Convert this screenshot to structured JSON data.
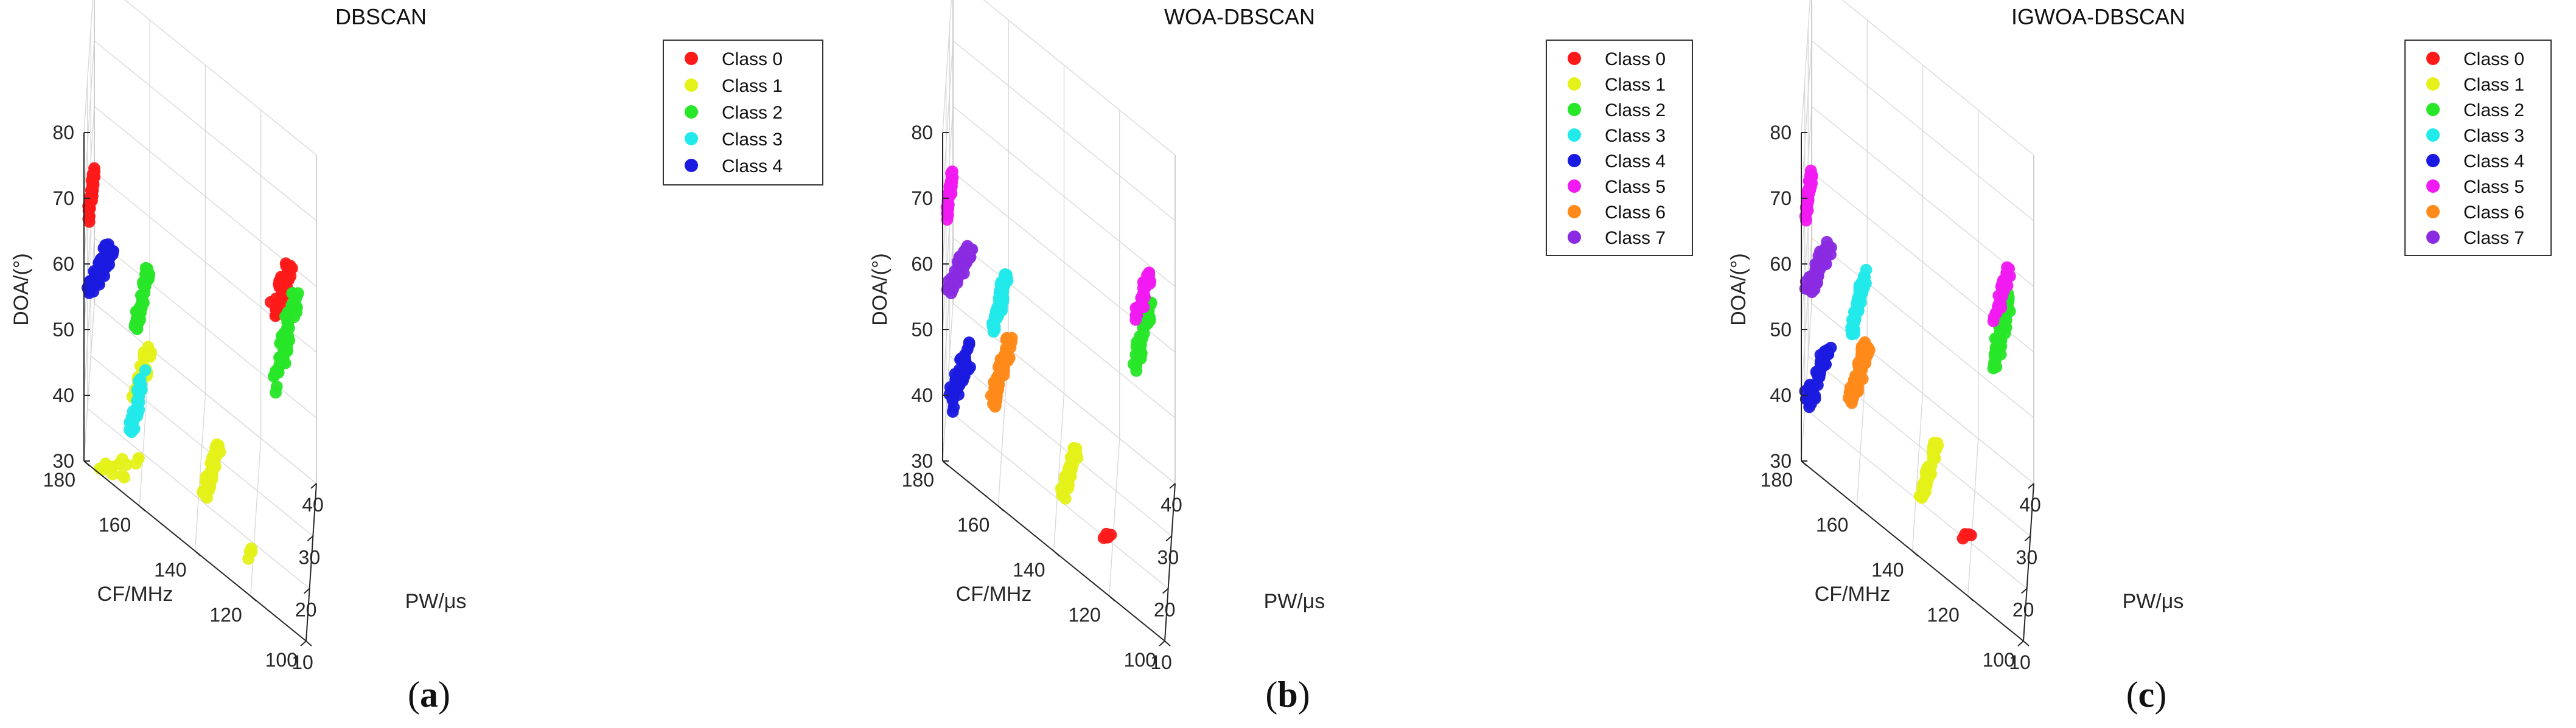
{
  "figure": {
    "captions": [
      "(a)",
      "(b)",
      "(c)"
    ],
    "caption_letters": [
      "a",
      "b",
      "c"
    ]
  },
  "chart_data": [
    {
      "type": "scatter3d",
      "title": "DBSCAN",
      "xlabel": "PW/μs",
      "ylabel": "CF/MHz",
      "zlabel": "DOA/(°)",
      "xlim": [
        10,
        40
      ],
      "ylim": [
        100,
        180
      ],
      "zlim": [
        30,
        80
      ],
      "xticks": [
        "10",
        "20",
        "30",
        "40"
      ],
      "yticks": [
        "100",
        "120",
        "140",
        "160",
        "180"
      ],
      "zticks": [
        "30",
        "40",
        "50",
        "60",
        "70",
        "80"
      ],
      "grid": true,
      "legend_position": "top-right",
      "series": [
        {
          "name": "Class 0",
          "color": "#ff1a1a",
          "clusters": [
            {
              "x": [
                12,
                19
              ],
              "y": [
                177,
                179
              ],
              "z": [
                65,
                69
              ],
              "n": 38
            },
            {
              "x": [
                33,
                38
              ],
              "y": [
                108,
                116
              ],
              "z": [
                55,
                63
              ],
              "n": 36
            }
          ]
        },
        {
          "name": "Class 1",
          "color": "#e4f21a",
          "clusters": [
            {
              "x": [
                10,
                14
              ],
              "y": [
                157,
                175
              ],
              "z": [
                30,
                35
              ],
              "n": 14
            },
            {
              "x": [
                16,
                26
              ],
              "y": [
                157,
                164
              ],
              "z": [
                39,
                43
              ],
              "n": 48
            },
            {
              "x": [
                20,
                30
              ],
              "y": [
                133,
                139
              ],
              "z": [
                30,
                33
              ],
              "n": 44
            },
            {
              "x": [
                16,
                18
              ],
              "y": [
                120,
                122
              ],
              "z": [
                30,
                31
              ],
              "n": 4
            }
          ]
        },
        {
          "name": "Class 2",
          "color": "#28e628",
          "clusters": [
            {
              "x": [
                15,
                25
              ],
              "y": [
                158,
                163
              ],
              "z": [
                51,
                55
              ],
              "n": 50
            },
            {
              "x": [
                24,
                38
              ],
              "y": [
                106,
                114
              ],
              "z": [
                52,
                60
              ],
              "n": 60
            }
          ]
        },
        {
          "name": "Class 3",
          "color": "#22eaea",
          "clusters": [
            {
              "x": [
                11,
                20
              ],
              "y": [
                159,
                164
              ],
              "z": [
                38,
                44
              ],
              "n": 36
            }
          ]
        },
        {
          "name": "Class 4",
          "color": "#1a1ae0",
          "clusters": [
            {
              "x": [
                10,
                19
              ],
              "y": [
                170,
                179
              ],
              "z": [
                56,
                59
              ],
              "n": 52
            }
          ]
        }
      ]
    },
    {
      "type": "scatter3d",
      "title": "WOA-DBSCAN",
      "xlabel": "PW/μs",
      "ylabel": "CF/MHz",
      "zlabel": "DOA/(°)",
      "xlim": [
        10,
        40
      ],
      "ylim": [
        100,
        180
      ],
      "zlim": [
        30,
        80
      ],
      "xticks": [
        "10",
        "20",
        "30",
        "40"
      ],
      "yticks": [
        "100",
        "120",
        "140",
        "160",
        "180"
      ],
      "zticks": [
        "30",
        "40",
        "50",
        "60",
        "70",
        "80"
      ],
      "grid": true,
      "legend_position": "top-right",
      "series": [
        {
          "name": "Class 0",
          "color": "#ff1a1a",
          "clusters": [
            {
              "x": [
                19,
                21
              ],
              "y": [
                120,
                124
              ],
              "z": [
                30,
                31
              ],
              "n": 4
            },
            {
              "x": [
                18,
                19
              ],
              "y": [
                172,
                173
              ],
              "z": [
                57,
                58
              ],
              "n": 1
            }
          ]
        },
        {
          "name": "Class 1",
          "color": "#e4f21a",
          "clusters": [
            {
              "x": [
                20,
                30
              ],
              "y": [
                133,
                139
              ],
              "z": [
                30,
                33
              ],
              "n": 44
            }
          ]
        },
        {
          "name": "Class 2",
          "color": "#28e628",
          "clusters": [
            {
              "x": [
                27,
                38
              ],
              "y": [
                108,
                114
              ],
              "z": [
                52,
                58
              ],
              "n": 44
            }
          ]
        },
        {
          "name": "Class 3",
          "color": "#22eaea",
          "clusters": [
            {
              "x": [
                15,
                25
              ],
              "y": [
                158,
                163
              ],
              "z": [
                51,
                55
              ],
              "n": 50
            }
          ]
        },
        {
          "name": "Class 4",
          "color": "#1a1ae0",
          "clusters": [
            {
              "x": [
                10,
                19
              ],
              "y": [
                170,
                179
              ],
              "z": [
                38,
                44
              ],
              "n": 48
            }
          ]
        },
        {
          "name": "Class 5",
          "color": "#f21af2",
          "clusters": [
            {
              "x": [
                12,
                19
              ],
              "y": [
                177,
                179
              ],
              "z": [
                65,
                69
              ],
              "n": 36
            },
            {
              "x": [
                31,
                38
              ],
              "y": [
                108,
                114
              ],
              "z": [
                57,
                62
              ],
              "n": 30
            }
          ]
        },
        {
          "name": "Class 6",
          "color": "#ff8a1a",
          "clusters": [
            {
              "x": [
                16,
                27
              ],
              "y": [
                157,
                164
              ],
              "z": [
                39,
                43
              ],
              "n": 60
            }
          ]
        },
        {
          "name": "Class 7",
          "color": "#8a2be2",
          "clusters": [
            {
              "x": [
                10,
                19
              ],
              "y": [
                170,
                179
              ],
              "z": [
                56,
                59
              ],
              "n": 50
            }
          ]
        }
      ]
    },
    {
      "type": "scatter3d",
      "title": "IGWOA-DBSCAN",
      "xlabel": "PW/μs",
      "ylabel": "CF/MHz",
      "zlabel": "DOA/(°)",
      "xlim": [
        10,
        40
      ],
      "ylim": [
        100,
        180
      ],
      "zlim": [
        30,
        80
      ],
      "xticks": [
        "10",
        "20",
        "30",
        "40"
      ],
      "yticks": [
        "100",
        "120",
        "140",
        "160",
        "180"
      ],
      "zticks": [
        "30",
        "40",
        "50",
        "60",
        "70",
        "80"
      ],
      "grid": true,
      "legend_position": "top-right",
      "series": [
        {
          "name": "Class 0",
          "color": "#ff1a1a",
          "clusters": [
            {
              "x": [
                19,
                21
              ],
              "y": [
                120,
                124
              ],
              "z": [
                30,
                31
              ],
              "n": 4
            },
            {
              "x": [
                17,
                19
              ],
              "y": [
                171,
                173
              ],
              "z": [
                57,
                59
              ],
              "n": 3
            }
          ]
        },
        {
          "name": "Class 1",
          "color": "#e4f21a",
          "clusters": [
            {
              "x": [
                20,
                30
              ],
              "y": [
                133,
                139
              ],
              "z": [
                30,
                33
              ],
              "n": 44
            }
          ]
        },
        {
          "name": "Class 2",
          "color": "#28e628",
          "clusters": [
            {
              "x": [
                27,
                38
              ],
              "y": [
                108,
                114
              ],
              "z": [
                52,
                58
              ],
              "n": 44
            }
          ]
        },
        {
          "name": "Class 3",
          "color": "#22eaea",
          "clusters": [
            {
              "x": [
                15,
                25
              ],
              "y": [
                158,
                163
              ],
              "z": [
                51,
                55
              ],
              "n": 50
            }
          ]
        },
        {
          "name": "Class 4",
          "color": "#1a1ae0",
          "clusters": [
            {
              "x": [
                10,
                19
              ],
              "y": [
                170,
                179
              ],
              "z": [
                38,
                44
              ],
              "n": 48
            }
          ]
        },
        {
          "name": "Class 5",
          "color": "#f21af2",
          "clusters": [
            {
              "x": [
                12,
                19
              ],
              "y": [
                177,
                179
              ],
              "z": [
                65,
                69
              ],
              "n": 36
            },
            {
              "x": [
                31,
                38
              ],
              "y": [
                108,
                114
              ],
              "z": [
                57,
                62
              ],
              "n": 30
            }
          ]
        },
        {
          "name": "Class 6",
          "color": "#ff8a1a",
          "clusters": [
            {
              "x": [
                16,
                27
              ],
              "y": [
                157,
                164
              ],
              "z": [
                39,
                43
              ],
              "n": 60
            }
          ]
        },
        {
          "name": "Class 7",
          "color": "#8a2be2",
          "clusters": [
            {
              "x": [
                10,
                19
              ],
              "y": [
                170,
                179
              ],
              "z": [
                56,
                59
              ],
              "n": 50
            }
          ]
        }
      ]
    }
  ]
}
